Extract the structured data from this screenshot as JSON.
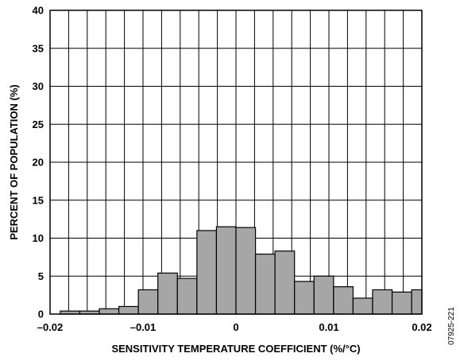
{
  "chart_data": {
    "type": "bar",
    "subtype": "histogram",
    "xlabel": "SENSITIVITY TEMPERATURE COEFFICIENT (%/°C)",
    "ylabel": "PERCENT OF POPULATION (%)",
    "xlim": [
      -0.02,
      0.02
    ],
    "ylim": [
      0,
      40
    ],
    "x_ticks": [
      -0.02,
      -0.01,
      0,
      0.01,
      0.02
    ],
    "x_tick_labels": [
      "–0.02",
      "–0.01",
      "0",
      "0.01",
      "0.02"
    ],
    "y_ticks": [
      0,
      5,
      10,
      15,
      20,
      25,
      30,
      35,
      40
    ],
    "y_tick_labels": [
      "0",
      "5",
      "10",
      "15",
      "20",
      "25",
      "30",
      "35",
      "40"
    ],
    "grid": true,
    "bar_color": "#a6a6a6",
    "bins": [
      {
        "x0": -0.0189,
        "x1": -0.0168,
        "value": 0.4
      },
      {
        "x0": -0.0168,
        "x1": -0.0147,
        "value": 0.4
      },
      {
        "x0": -0.0147,
        "x1": -0.0126,
        "value": 0.7
      },
      {
        "x0": -0.0126,
        "x1": -0.0105,
        "value": 1.0
      },
      {
        "x0": -0.0105,
        "x1": -0.0084,
        "value": 3.2
      },
      {
        "x0": -0.0084,
        "x1": -0.0063,
        "value": 5.4
      },
      {
        "x0": -0.0063,
        "x1": -0.0042,
        "value": 4.7
      },
      {
        "x0": -0.0042,
        "x1": -0.0021,
        "value": 11.0
      },
      {
        "x0": -0.0021,
        "x1": 0.0,
        "value": 11.5
      },
      {
        "x0": 0.0,
        "x1": 0.0021,
        "value": 11.4
      },
      {
        "x0": 0.0021,
        "x1": 0.0042,
        "value": 7.9
      },
      {
        "x0": 0.0042,
        "x1": 0.0063,
        "value": 8.3
      },
      {
        "x0": 0.0063,
        "x1": 0.0084,
        "value": 4.3
      },
      {
        "x0": 0.0084,
        "x1": 0.0105,
        "value": 5.0
      },
      {
        "x0": 0.0105,
        "x1": 0.0126,
        "value": 3.6
      },
      {
        "x0": 0.0126,
        "x1": 0.0147,
        "value": 2.1
      },
      {
        "x0": 0.0147,
        "x1": 0.0168,
        "value": 3.2
      },
      {
        "x0": 0.0168,
        "x1": 0.0189,
        "value": 2.9
      },
      {
        "x0": 0.0189,
        "x1": 0.021,
        "value": 3.2
      }
    ]
  },
  "figure_id": "07925-221"
}
